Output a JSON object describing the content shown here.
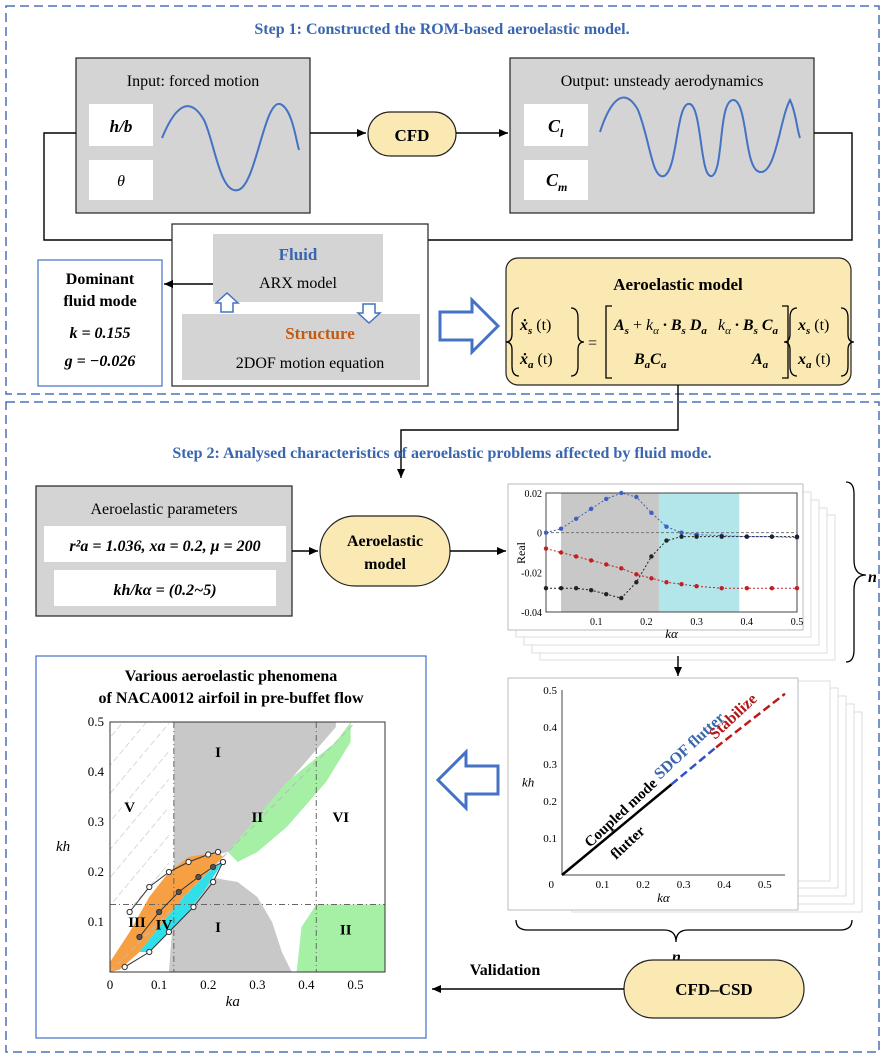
{
  "step1": {
    "title": "Step 1: Constructed the ROM-based aeroelastic model.",
    "input_title": "Input: forced motion",
    "input_vars": [
      "h/b",
      "θ"
    ],
    "cfd": "CFD",
    "output_title": "Output: unsteady aerodynamics",
    "output_vars": [
      "C",
      "l",
      "C",
      "m"
    ],
    "fluid_label": "Fluid",
    "fluid_model": "ARX model",
    "structure_label": "Structure",
    "structure_model": "2DOF motion equation",
    "dominant_title_1": "Dominant",
    "dominant_title_2": "fluid mode",
    "dominant_k": "k = 0.155",
    "dominant_g": "g = −0.026",
    "aero_title": "Aeroelastic model"
  },
  "step2": {
    "title": "Step 2: Analysed characteristics of aeroelastic problems affected by fluid mode.",
    "params_title": "Aeroelastic parameters",
    "params_line": "r²a = 1.036, xa = 0.2, μ = 200",
    "ratio_line": "kh/kα = (0.2~5)",
    "aero_model_1": "Aeroelastic",
    "aero_model_2": "model",
    "n_label": "n",
    "phen_title_1": "Various aeroelastic phenomena",
    "phen_title_2": "of NACA0012 airfoil in pre-buffet flow",
    "regions": [
      "I",
      "II",
      "III",
      "IV",
      "V",
      "VI",
      "I",
      "II"
    ],
    "sdof": "SDOF flutter",
    "stabilize": "Stabilize",
    "coupled_1": "Coupled mode",
    "coupled_2": "flutter",
    "validation": "Validation",
    "cfdcsd": "CFD–CSD"
  },
  "colors": {
    "step_blue": "#3a66b0",
    "panel_gray": "#d4d4d4",
    "cream": "#fbe9b4",
    "orange_text": "#c55a11",
    "green": "#a6f0a6",
    "cyan": "#30e0e8",
    "orange": "#f7a043"
  },
  "chart_data": [
    {
      "type": "scatter",
      "title": "",
      "xlabel": "kα",
      "ylabel": "Real",
      "xlim": [
        0,
        0.5
      ],
      "ylim": [
        -0.04,
        0.02
      ],
      "xticks": [
        "0.1",
        "0.2",
        "0.3",
        "0.4",
        "0.5"
      ],
      "yticks": [
        "0.02",
        "0",
        "-0.02",
        "-0.04"
      ],
      "series": [
        {
          "x": [
            0,
            0.03,
            0.06,
            0.09,
            0.12,
            0.15,
            0.18,
            0.21,
            0.24,
            0.27,
            0.3,
            0.35,
            0.4,
            0.45,
            0.5
          ],
          "values": [
            0,
            0.002,
            0.007,
            0.012,
            0.017,
            0.02,
            0.018,
            0.01,
            0.003,
            0.0,
            -0.001,
            -0.0015,
            -0.002,
            -0.002,
            -0.0025
          ]
        },
        {
          "x": [
            0,
            0.03,
            0.06,
            0.09,
            0.12,
            0.15,
            0.18,
            0.21,
            0.24,
            0.27,
            0.3,
            0.35,
            0.4,
            0.45,
            0.5
          ],
          "values": [
            -0.008,
            -0.01,
            -0.012,
            -0.014,
            -0.016,
            -0.018,
            -0.021,
            -0.023,
            -0.025,
            -0.026,
            -0.027,
            -0.028,
            -0.028,
            -0.028,
            -0.028
          ]
        },
        {
          "x": [
            0,
            0.03,
            0.06,
            0.09,
            0.12,
            0.15,
            0.18,
            0.21,
            0.24,
            0.27,
            0.3,
            0.35,
            0.4,
            0.45,
            0.5
          ],
          "values": [
            -0.028,
            -0.028,
            -0.028,
            -0.029,
            -0.031,
            -0.033,
            -0.025,
            -0.012,
            -0.004,
            -0.002,
            -0.002,
            -0.002,
            -0.002,
            -0.002,
            -0.002
          ]
        }
      ]
    },
    {
      "type": "line",
      "xlabel": "kα",
      "ylabel": "kh",
      "xlim": [
        0,
        0.55
      ],
      "ylim": [
        0,
        0.5
      ],
      "xticks": [
        "0.1",
        "0.2",
        "0.3",
        "0.4",
        "0.5"
      ],
      "yticks": [
        "0.1",
        "0.2",
        "0.3",
        "0.4",
        "0.5"
      ]
    },
    {
      "type": "area",
      "xlabel": "ka",
      "ylabel": "kh",
      "xlim": [
        0,
        0.56
      ],
      "ylim": [
        0,
        0.5
      ],
      "xticks": [
        "0",
        "0.1",
        "0.2",
        "0.3",
        "0.4",
        "0.5"
      ],
      "yticks": [
        "0.1",
        "0.2",
        "0.3",
        "0.4",
        "0.5"
      ]
    }
  ]
}
